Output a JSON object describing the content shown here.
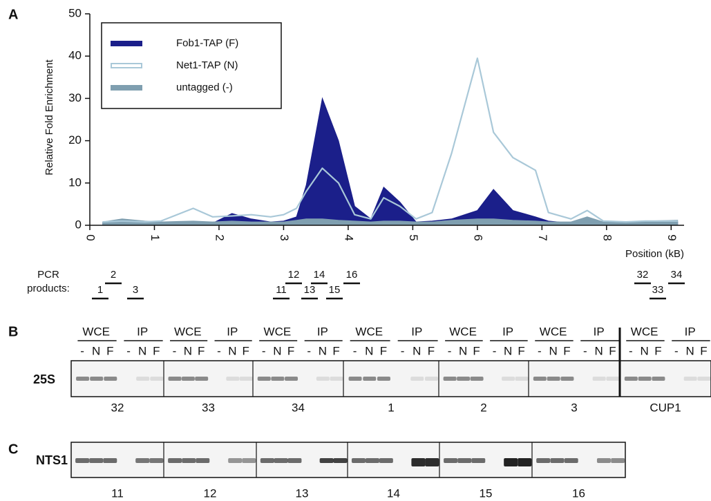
{
  "panel_labels": [
    "A",
    "B",
    "C"
  ],
  "chart_data": {
    "type": "area",
    "y_label": "Relative Fold Enrichment",
    "x_label": "Position (kB)",
    "x": [
      0.2,
      0.5,
      0.85,
      1.1,
      1.6,
      1.9,
      2.2,
      2.5,
      2.8,
      3.0,
      3.2,
      3.35,
      3.6,
      3.85,
      4.1,
      4.35,
      4.55,
      4.8,
      5.05,
      5.3,
      5.6,
      6.0,
      6.25,
      6.55,
      6.9,
      7.1,
      7.45,
      7.7,
      7.95,
      8.3,
      8.6,
      9.1
    ],
    "series": [
      {
        "name": "Fob1-TAP (F)",
        "color": "#1b1f8a",
        "fill": true,
        "values": [
          0.5,
          1,
          0.8,
          0.5,
          0.8,
          0.5,
          2.8,
          1.5,
          0.8,
          1,
          2,
          9.5,
          30,
          20,
          4.5,
          1.5,
          9,
          5.5,
          0.8,
          1,
          1.5,
          3.5,
          8.5,
          3.5,
          2,
          1,
          0.5,
          0.5,
          0.3,
          0.2,
          0.5,
          0.8
        ]
      },
      {
        "name": "Net1-TAP (N)",
        "color": "#a9c8d8",
        "fill": false,
        "values": [
          0.8,
          1,
          0.8,
          1,
          4,
          2,
          2.2,
          2.5,
          2,
          2.5,
          4,
          8,
          13.5,
          10,
          2.5,
          1.5,
          6.5,
          4.5,
          1.5,
          3,
          17,
          39.5,
          22,
          16,
          13,
          3,
          1.5,
          3.5,
          1,
          0.8,
          1,
          1
        ]
      },
      {
        "name": "untagged (-)",
        "color": "#7f9fb0",
        "fill": true,
        "values": [
          0.8,
          1.5,
          1,
          0.8,
          1,
          0.8,
          1,
          0.8,
          0.8,
          0.8,
          1.2,
          1.5,
          1.5,
          1.2,
          1,
          0.8,
          1,
          1,
          0.8,
          0.8,
          1.2,
          1.5,
          1.5,
          1.2,
          1,
          0.8,
          0.8,
          2,
          0.8,
          0.8,
          1,
          1.2
        ]
      }
    ],
    "xlim": [
      0,
      9.2
    ],
    "xticks": [
      0,
      1,
      2,
      3,
      4,
      5,
      6,
      7,
      8,
      9
    ],
    "ylim": [
      0,
      50
    ],
    "yticks": [
      0,
      10,
      20,
      30,
      40,
      50
    ],
    "legend": "upper left"
  },
  "pcr_products": {
    "title": [
      "PCR",
      "products:"
    ],
    "labels": [
      "1",
      "2",
      "3",
      "11",
      "12",
      "13",
      "14",
      "15",
      "16",
      "32",
      "33",
      "34"
    ]
  },
  "gel_b": {
    "groups": [
      "WCE",
      "IP"
    ],
    "lanes": [
      "-",
      "N",
      "F"
    ],
    "row_label": "25S",
    "samples": [
      "32",
      "33",
      "34",
      "1",
      "2",
      "3",
      "CUP1"
    ]
  },
  "gel_c": {
    "row_label": "NTS1",
    "samples": [
      "11",
      "12",
      "13",
      "14",
      "15",
      "16"
    ]
  }
}
